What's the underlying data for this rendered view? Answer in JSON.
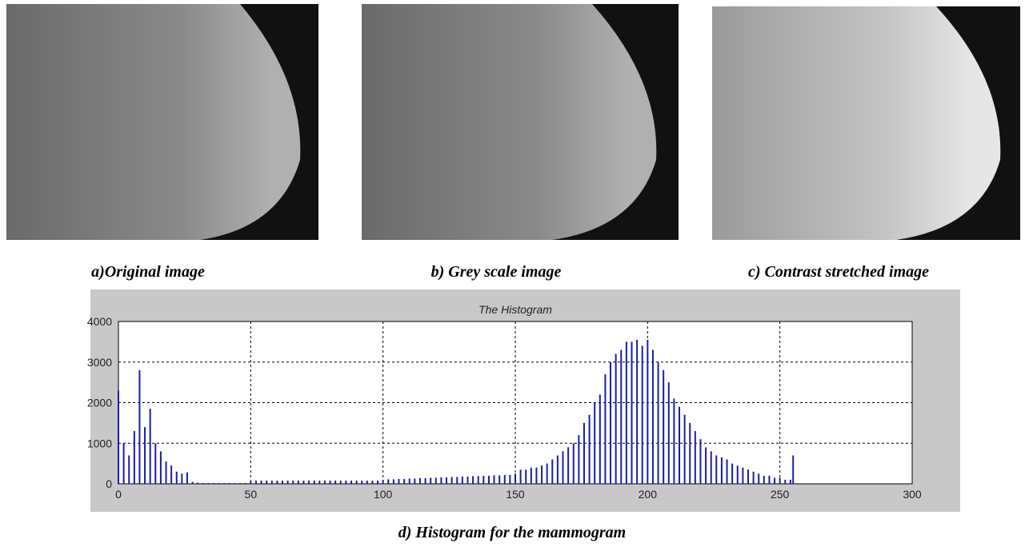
{
  "captions": [
    "a)Original image",
    "b) Grey scale image",
    "c) Contrast stretched image",
    "d) Histogram for the mammogram"
  ],
  "chart_data": {
    "type": "stem",
    "title": "The Histogram",
    "color": "#1c1ca8",
    "grid": true,
    "xlim": [
      0,
      300
    ],
    "xticks": [
      0,
      50,
      100,
      150,
      200,
      250,
      300
    ],
    "ylim": [
      0,
      4000
    ],
    "yticks": [
      0,
      1000,
      2000,
      3000,
      4000
    ],
    "x": [
      0,
      2,
      4,
      6,
      8,
      10,
      12,
      14,
      16,
      18,
      20,
      22,
      24,
      26,
      28,
      30,
      32,
      34,
      36,
      38,
      40,
      42,
      44,
      46,
      48,
      50,
      52,
      54,
      56,
      58,
      60,
      62,
      64,
      66,
      68,
      70,
      72,
      74,
      76,
      78,
      80,
      82,
      84,
      86,
      88,
      90,
      92,
      94,
      96,
      98,
      100,
      102,
      104,
      106,
      108,
      110,
      112,
      114,
      116,
      118,
      120,
      122,
      124,
      126,
      128,
      130,
      132,
      134,
      136,
      138,
      140,
      142,
      144,
      146,
      148,
      150,
      152,
      154,
      156,
      158,
      160,
      162,
      164,
      166,
      168,
      170,
      172,
      174,
      176,
      178,
      180,
      182,
      184,
      186,
      188,
      190,
      192,
      194,
      196,
      198,
      200,
      202,
      204,
      206,
      208,
      210,
      212,
      214,
      216,
      218,
      220,
      222,
      224,
      226,
      228,
      230,
      232,
      234,
      236,
      238,
      240,
      242,
      244,
      246,
      248,
      250,
      252,
      254,
      255
    ],
    "values": [
      2300,
      1000,
      700,
      1300,
      2800,
      1400,
      1850,
      1000,
      800,
      550,
      450,
      300,
      250,
      280,
      50,
      30,
      20,
      20,
      20,
      20,
      20,
      20,
      20,
      20,
      20,
      60,
      80,
      80,
      80,
      80,
      80,
      80,
      80,
      80,
      80,
      80,
      80,
      80,
      80,
      80,
      80,
      80,
      80,
      80,
      80,
      80,
      80,
      80,
      80,
      80,
      100,
      110,
      110,
      120,
      120,
      130,
      130,
      140,
      140,
      150,
      150,
      160,
      160,
      170,
      170,
      180,
      180,
      190,
      190,
      200,
      200,
      210,
      210,
      220,
      220,
      250,
      350,
      350,
      400,
      400,
      450,
      500,
      600,
      700,
      800,
      900,
      1000,
      1200,
      1500,
      1700,
      2000,
      2200,
      2700,
      3000,
      3200,
      3300,
      3500,
      3500,
      3550,
      3400,
      3550,
      3300,
      3000,
      2800,
      2500,
      2100,
      1900,
      1700,
      1500,
      1300,
      1100,
      900,
      800,
      700,
      650,
      600,
      500,
      450,
      400,
      350,
      300,
      250,
      200,
      200,
      150,
      150,
      100,
      100,
      700
    ]
  }
}
